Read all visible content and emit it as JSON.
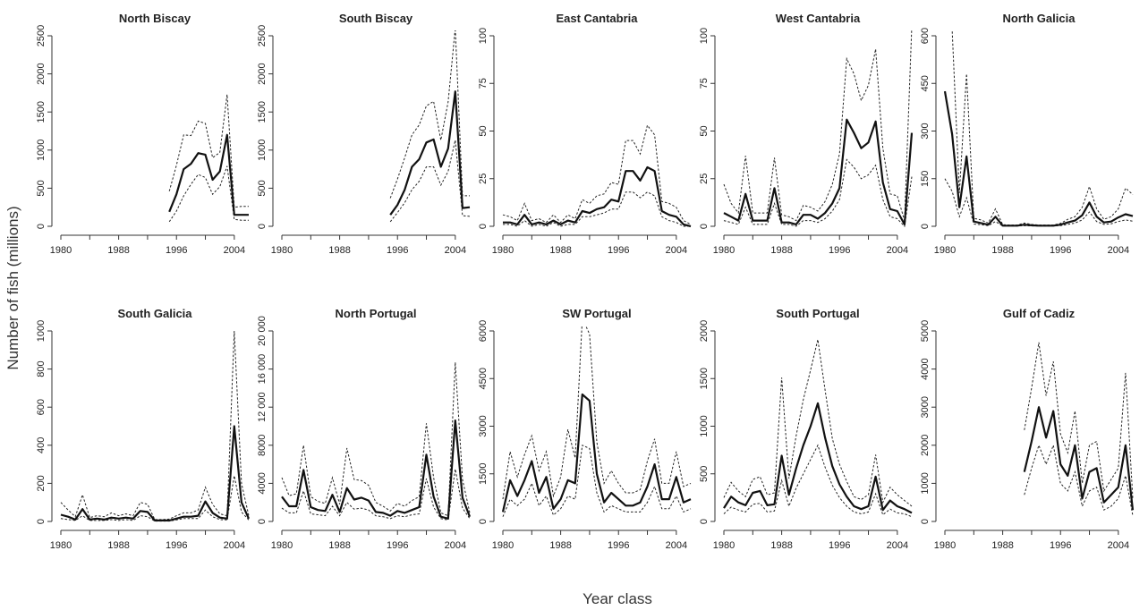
{
  "figure": {
    "ylabel": "Number of fish (millions)",
    "xlabel": "Year class"
  },
  "style": {
    "estimate_color": "#111111",
    "ci_color": "#222222",
    "axis_color": "#333333"
  },
  "chart_data": [
    {
      "type": "line",
      "title": "North Biscay",
      "x_ticks": [
        1980,
        1988,
        1996,
        2004
      ],
      "y_ticks": [
        0,
        500,
        1000,
        1500,
        2000,
        2500
      ],
      "y_tick_labels": [
        "0",
        "500",
        "1000",
        "1500",
        "2000",
        "2500"
      ],
      "xlim": [
        1980,
        2006
      ],
      "ylim": [
        0,
        2500
      ],
      "x": [
        1995,
        1996,
        1997,
        1998,
        1999,
        2000,
        2001,
        2002,
        2003,
        2004,
        2005,
        2006
      ],
      "estimate": [
        190,
        420,
        750,
        820,
        960,
        940,
        610,
        720,
        1200,
        150,
        150,
        150
      ],
      "lower": [
        60,
        200,
        400,
        550,
        680,
        640,
        420,
        520,
        790,
        90,
        80,
        80
      ],
      "upper": [
        460,
        800,
        1200,
        1190,
        1380,
        1350,
        900,
        970,
        1730,
        250,
        260,
        260
      ]
    },
    {
      "type": "line",
      "title": "South Biscay",
      "x_ticks": [
        1980,
        1988,
        1996,
        2004
      ],
      "y_ticks": [
        0,
        500,
        1000,
        1500,
        2000,
        2500
      ],
      "y_tick_labels": [
        "0",
        "500",
        "1000",
        "1500",
        "2000",
        "2500"
      ],
      "xlim": [
        1980,
        2006
      ],
      "ylim": [
        0,
        2500
      ],
      "x": [
        1995,
        1996,
        1997,
        1998,
        1999,
        2000,
        2001,
        2002,
        2003,
        2004,
        2005,
        2006
      ],
      "estimate": [
        150,
        280,
        480,
        780,
        880,
        1100,
        1140,
        780,
        1020,
        1770,
        240,
        250
      ],
      "lower": [
        60,
        180,
        310,
        480,
        590,
        780,
        780,
        540,
        720,
        1130,
        140,
        130
      ],
      "upper": [
        370,
        620,
        900,
        1200,
        1330,
        1580,
        1640,
        1130,
        1630,
        2600,
        400,
        400
      ]
    },
    {
      "type": "line",
      "title": "East Cantabria",
      "x_ticks": [
        1980,
        1988,
        1996,
        2004
      ],
      "y_ticks": [
        0,
        25,
        50,
        75,
        100
      ],
      "y_tick_labels": [
        "0",
        "25",
        "50",
        "75",
        "100"
      ],
      "xlim": [
        1980,
        2006
      ],
      "ylim": [
        0,
        100
      ],
      "x": [
        1980,
        1981,
        1982,
        1983,
        1984,
        1985,
        1986,
        1987,
        1988,
        1989,
        1990,
        1991,
        1992,
        1993,
        1994,
        1995,
        1996,
        1997,
        1998,
        1999,
        2000,
        2001,
        2002,
        2003,
        2004,
        2005,
        2006
      ],
      "estimate": [
        2,
        2,
        1,
        6,
        1,
        2,
        1,
        3,
        1,
        3,
        2,
        8,
        7,
        9,
        10,
        14,
        13,
        29,
        29,
        24,
        31,
        29,
        8,
        6,
        5,
        1,
        0
      ],
      "lower": [
        1,
        1,
        0,
        3,
        0,
        1,
        0,
        2,
        0,
        1,
        1,
        5,
        5,
        6,
        7,
        9,
        9,
        18,
        18,
        15,
        18,
        16,
        5,
        3,
        2,
        0,
        0
      ],
      "upper": [
        6,
        5,
        3,
        12,
        3,
        4,
        2,
        6,
        2,
        6,
        4,
        14,
        12,
        16,
        17,
        23,
        22,
        45,
        45,
        38,
        53,
        48,
        13,
        12,
        10,
        3,
        1
      ]
    },
    {
      "type": "line",
      "title": "West Cantabria",
      "x_ticks": [
        1980,
        1988,
        1996,
        2004
      ],
      "y_ticks": [
        0,
        25,
        50,
        75,
        100
      ],
      "y_tick_labels": [
        "0",
        "25",
        "50",
        "75",
        "100"
      ],
      "xlim": [
        1980,
        2006
      ],
      "ylim": [
        0,
        100
      ],
      "x": [
        1980,
        1981,
        1982,
        1983,
        1984,
        1985,
        1986,
        1987,
        1988,
        1989,
        1990,
        1991,
        1992,
        1993,
        1994,
        1995,
        1996,
        1997,
        1998,
        1999,
        2000,
        2001,
        2002,
        2003,
        2004,
        2005,
        2006
      ],
      "estimate": [
        7,
        5,
        3,
        17,
        3,
        3,
        3,
        20,
        2,
        2,
        1,
        6,
        6,
        4,
        7,
        12,
        20,
        56,
        49,
        41,
        44,
        55,
        23,
        9,
        8,
        1,
        49
      ],
      "lower": [
        3,
        2,
        1,
        10,
        1,
        1,
        1,
        12,
        1,
        1,
        0,
        3,
        3,
        2,
        4,
        8,
        14,
        35,
        31,
        25,
        27,
        32,
        14,
        5,
        4,
        0,
        26
      ],
      "upper": [
        22,
        12,
        7,
        37,
        7,
        7,
        7,
        36,
        6,
        5,
        3,
        11,
        10,
        8,
        13,
        22,
        38,
        88,
        80,
        66,
        74,
        93,
        41,
        17,
        16,
        3,
        105
      ]
    },
    {
      "type": "line",
      "title": "North Galicia",
      "x_ticks": [
        1980,
        1988,
        1996,
        2004
      ],
      "y_ticks": [
        0,
        150,
        300,
        450,
        600
      ],
      "y_tick_labels": [
        "0",
        "150",
        "300",
        "450",
        "600"
      ],
      "xlim": [
        1980,
        2006
      ],
      "ylim": [
        0,
        600
      ],
      "x": [
        1980,
        1981,
        1982,
        1983,
        1984,
        1985,
        1986,
        1987,
        1988,
        1989,
        1990,
        1991,
        1992,
        1993,
        1994,
        1995,
        1996,
        1997,
        1998,
        1999,
        2000,
        2001,
        2002,
        2003,
        2004,
        2005,
        2006
      ],
      "estimate": [
        425,
        290,
        60,
        220,
        15,
        10,
        5,
        30,
        2,
        2,
        2,
        5,
        3,
        2,
        2,
        2,
        5,
        12,
        18,
        35,
        75,
        30,
        12,
        15,
        28,
        38,
        32
      ],
      "lower": [
        150,
        110,
        30,
        90,
        7,
        5,
        2,
        15,
        1,
        1,
        1,
        2,
        1,
        1,
        1,
        1,
        2,
        6,
        10,
        20,
        45,
        15,
        6,
        8,
        15,
        20,
        16
      ],
      "upper": [
        920,
        620,
        105,
        480,
        25,
        20,
        10,
        55,
        5,
        4,
        4,
        10,
        6,
        4,
        4,
        4,
        9,
        22,
        30,
        60,
        125,
        55,
        22,
        30,
        55,
        120,
        100
      ]
    },
    {
      "type": "line",
      "title": "South Galicia",
      "x_ticks": [
        1980,
        1988,
        1996,
        2004
      ],
      "y_ticks": [
        0,
        200,
        400,
        600,
        800,
        1000
      ],
      "y_tick_labels": [
        "0",
        "200",
        "400",
        "600",
        "800",
        "1000"
      ],
      "xlim": [
        1980,
        2006
      ],
      "ylim": [
        0,
        1000
      ],
      "x": [
        1980,
        1981,
        1982,
        1983,
        1984,
        1985,
        1986,
        1987,
        1988,
        1989,
        1990,
        1991,
        1992,
        1993,
        1994,
        1995,
        1996,
        1997,
        1998,
        1999,
        2000,
        2001,
        2002,
        2003,
        2004,
        2005,
        2006
      ],
      "estimate": [
        35,
        25,
        10,
        65,
        10,
        15,
        10,
        20,
        15,
        20,
        15,
        55,
        50,
        5,
        5,
        5,
        15,
        25,
        25,
        30,
        105,
        45,
        20,
        15,
        500,
        100,
        15
      ],
      "lower": [
        15,
        10,
        5,
        30,
        5,
        5,
        5,
        10,
        5,
        10,
        5,
        30,
        25,
        2,
        2,
        2,
        8,
        15,
        15,
        15,
        60,
        25,
        10,
        8,
        240,
        50,
        8
      ],
      "upper": [
        100,
        60,
        25,
        140,
        20,
        30,
        25,
        45,
        30,
        40,
        30,
        100,
        90,
        10,
        10,
        12,
        30,
        45,
        45,
        60,
        180,
        90,
        40,
        30,
        1000,
        200,
        30
      ]
    },
    {
      "type": "line",
      "title": "North Portugal",
      "x_ticks": [
        1980,
        1988,
        1996,
        2004
      ],
      "y_ticks": [
        0,
        4000,
        8000,
        12000,
        16000,
        20000
      ],
      "y_tick_labels": [
        "0",
        "4000",
        "8000",
        "12 000",
        "16 000",
        "20 000"
      ],
      "xlim": [
        1980,
        2006
      ],
      "ylim": [
        0,
        20000
      ],
      "x": [
        1980,
        1981,
        1982,
        1983,
        1984,
        1985,
        1986,
        1987,
        1988,
        1989,
        1990,
        1991,
        1992,
        1993,
        1994,
        1995,
        1996,
        1997,
        1998,
        1999,
        2000,
        2001,
        2002,
        2003,
        2004,
        2005,
        2006
      ],
      "estimate": [
        2600,
        1600,
        1600,
        5400,
        1500,
        1200,
        1100,
        2800,
        1000,
        3500,
        2300,
        2500,
        2200,
        1000,
        900,
        600,
        1100,
        900,
        1200,
        1500,
        7000,
        2600,
        500,
        300,
        10600,
        2500,
        500
      ],
      "lower": [
        1400,
        900,
        900,
        3200,
        800,
        700,
        600,
        1600,
        600,
        2000,
        1300,
        1400,
        1200,
        600,
        500,
        300,
        600,
        500,
        700,
        800,
        4500,
        1500,
        300,
        150,
        5500,
        1400,
        300
      ],
      "upper": [
        4600,
        2700,
        2900,
        8000,
        2600,
        2100,
        1900,
        4600,
        1800,
        7700,
        4400,
        4300,
        3800,
        2000,
        1600,
        1100,
        1900,
        1600,
        2200,
        2600,
        10300,
        4600,
        900,
        600,
        16700,
        4400,
        900
      ]
    },
    {
      "type": "line",
      "title": "SW Portugal",
      "x_ticks": [
        1980,
        1988,
        1996,
        2004
      ],
      "y_ticks": [
        0,
        1500,
        3000,
        4500,
        6000
      ],
      "y_tick_labels": [
        "0",
        "1500",
        "3000",
        "4500",
        "6000"
      ],
      "xlim": [
        1980,
        2006
      ],
      "ylim": [
        0,
        6000
      ],
      "x": [
        1980,
        1981,
        1982,
        1983,
        1984,
        1985,
        1986,
        1987,
        1988,
        1989,
        1990,
        1991,
        1992,
        1993,
        1994,
        1995,
        1996,
        1997,
        1998,
        1999,
        2000,
        2001,
        2002,
        2003,
        2004,
        2005,
        2006
      ],
      "estimate": [
        300,
        1300,
        800,
        1300,
        1900,
        900,
        1400,
        400,
        700,
        1300,
        1200,
        4000,
        3800,
        1500,
        600,
        900,
        700,
        500,
        500,
        600,
        1100,
        1800,
        700,
        700,
        1400,
        600,
        700
      ],
      "lower": [
        150,
        700,
        500,
        700,
        1200,
        500,
        800,
        200,
        400,
        800,
        700,
        2400,
        2300,
        900,
        300,
        500,
        400,
        300,
        300,
        300,
        600,
        1100,
        400,
        400,
        800,
        300,
        400
      ],
      "upper": [
        700,
        2200,
        1400,
        2100,
        2700,
        1600,
        2200,
        800,
        1400,
        2900,
        2000,
        6400,
        5900,
        2500,
        1200,
        1600,
        1200,
        900,
        900,
        1000,
        1900,
        2600,
        1200,
        1200,
        2200,
        1100,
        1200
      ]
    },
    {
      "type": "line",
      "title": "South Portugal",
      "x_ticks": [
        1980,
        1988,
        1996,
        2004
      ],
      "y_ticks": [
        0,
        500,
        1000,
        1500,
        2000
      ],
      "y_tick_labels": [
        "0",
        "500",
        "1000",
        "1500",
        "2000"
      ],
      "xlim": [
        1980,
        2006
      ],
      "ylim": [
        0,
        2000
      ],
      "x": [
        1980,
        1981,
        1982,
        1983,
        1984,
        1985,
        1986,
        1987,
        1988,
        1989,
        1990,
        1991,
        1992,
        1993,
        1994,
        1995,
        1996,
        1997,
        1998,
        1999,
        2000,
        2001,
        2002,
        2003,
        2004,
        2005,
        2006
      ],
      "estimate": [
        140,
        260,
        200,
        170,
        300,
        320,
        170,
        180,
        690,
        280,
        560,
        800,
        1000,
        1240,
        880,
        580,
        390,
        260,
        160,
        130,
        160,
        470,
        120,
        220,
        160,
        130,
        90
      ],
      "lower": [
        80,
        150,
        120,
        100,
        180,
        190,
        100,
        110,
        430,
        160,
        350,
        500,
        650,
        800,
        570,
        380,
        250,
        160,
        100,
        80,
        100,
        290,
        70,
        130,
        90,
        80,
        50
      ],
      "upper": [
        250,
        410,
        320,
        260,
        440,
        470,
        280,
        300,
        1510,
        450,
        900,
        1280,
        1590,
        1910,
        1380,
        870,
        600,
        420,
        260,
        230,
        280,
        700,
        200,
        360,
        280,
        220,
        160
      ]
    },
    {
      "type": "line",
      "title": "Gulf of Cadiz",
      "x_ticks": [
        1980,
        1988,
        1996,
        2004
      ],
      "y_ticks": [
        0,
        1000,
        2000,
        3000,
        4000,
        5000
      ],
      "y_tick_labels": [
        "0",
        "1000",
        "2000",
        "3000",
        "4000",
        "5000"
      ],
      "xlim": [
        1980,
        2006
      ],
      "ylim": [
        0,
        5000
      ],
      "x": [
        1991,
        1992,
        1993,
        1994,
        1995,
        1996,
        1997,
        1998,
        1999,
        2000,
        2001,
        2002,
        2003,
        2004,
        2005,
        2006
      ],
      "estimate": [
        1300,
        2100,
        3000,
        2200,
        2900,
        1500,
        1200,
        2000,
        600,
        1300,
        1400,
        500,
        700,
        900,
        2000,
        300
      ],
      "lower": [
        700,
        1400,
        2000,
        1500,
        2000,
        1000,
        800,
        1300,
        400,
        800,
        900,
        300,
        400,
        600,
        1200,
        150
      ],
      "upper": [
        2400,
        3500,
        4700,
        3300,
        4200,
        2300,
        1800,
        2900,
        1000,
        2000,
        2100,
        800,
        1100,
        1400,
        3900,
        600
      ]
    }
  ]
}
